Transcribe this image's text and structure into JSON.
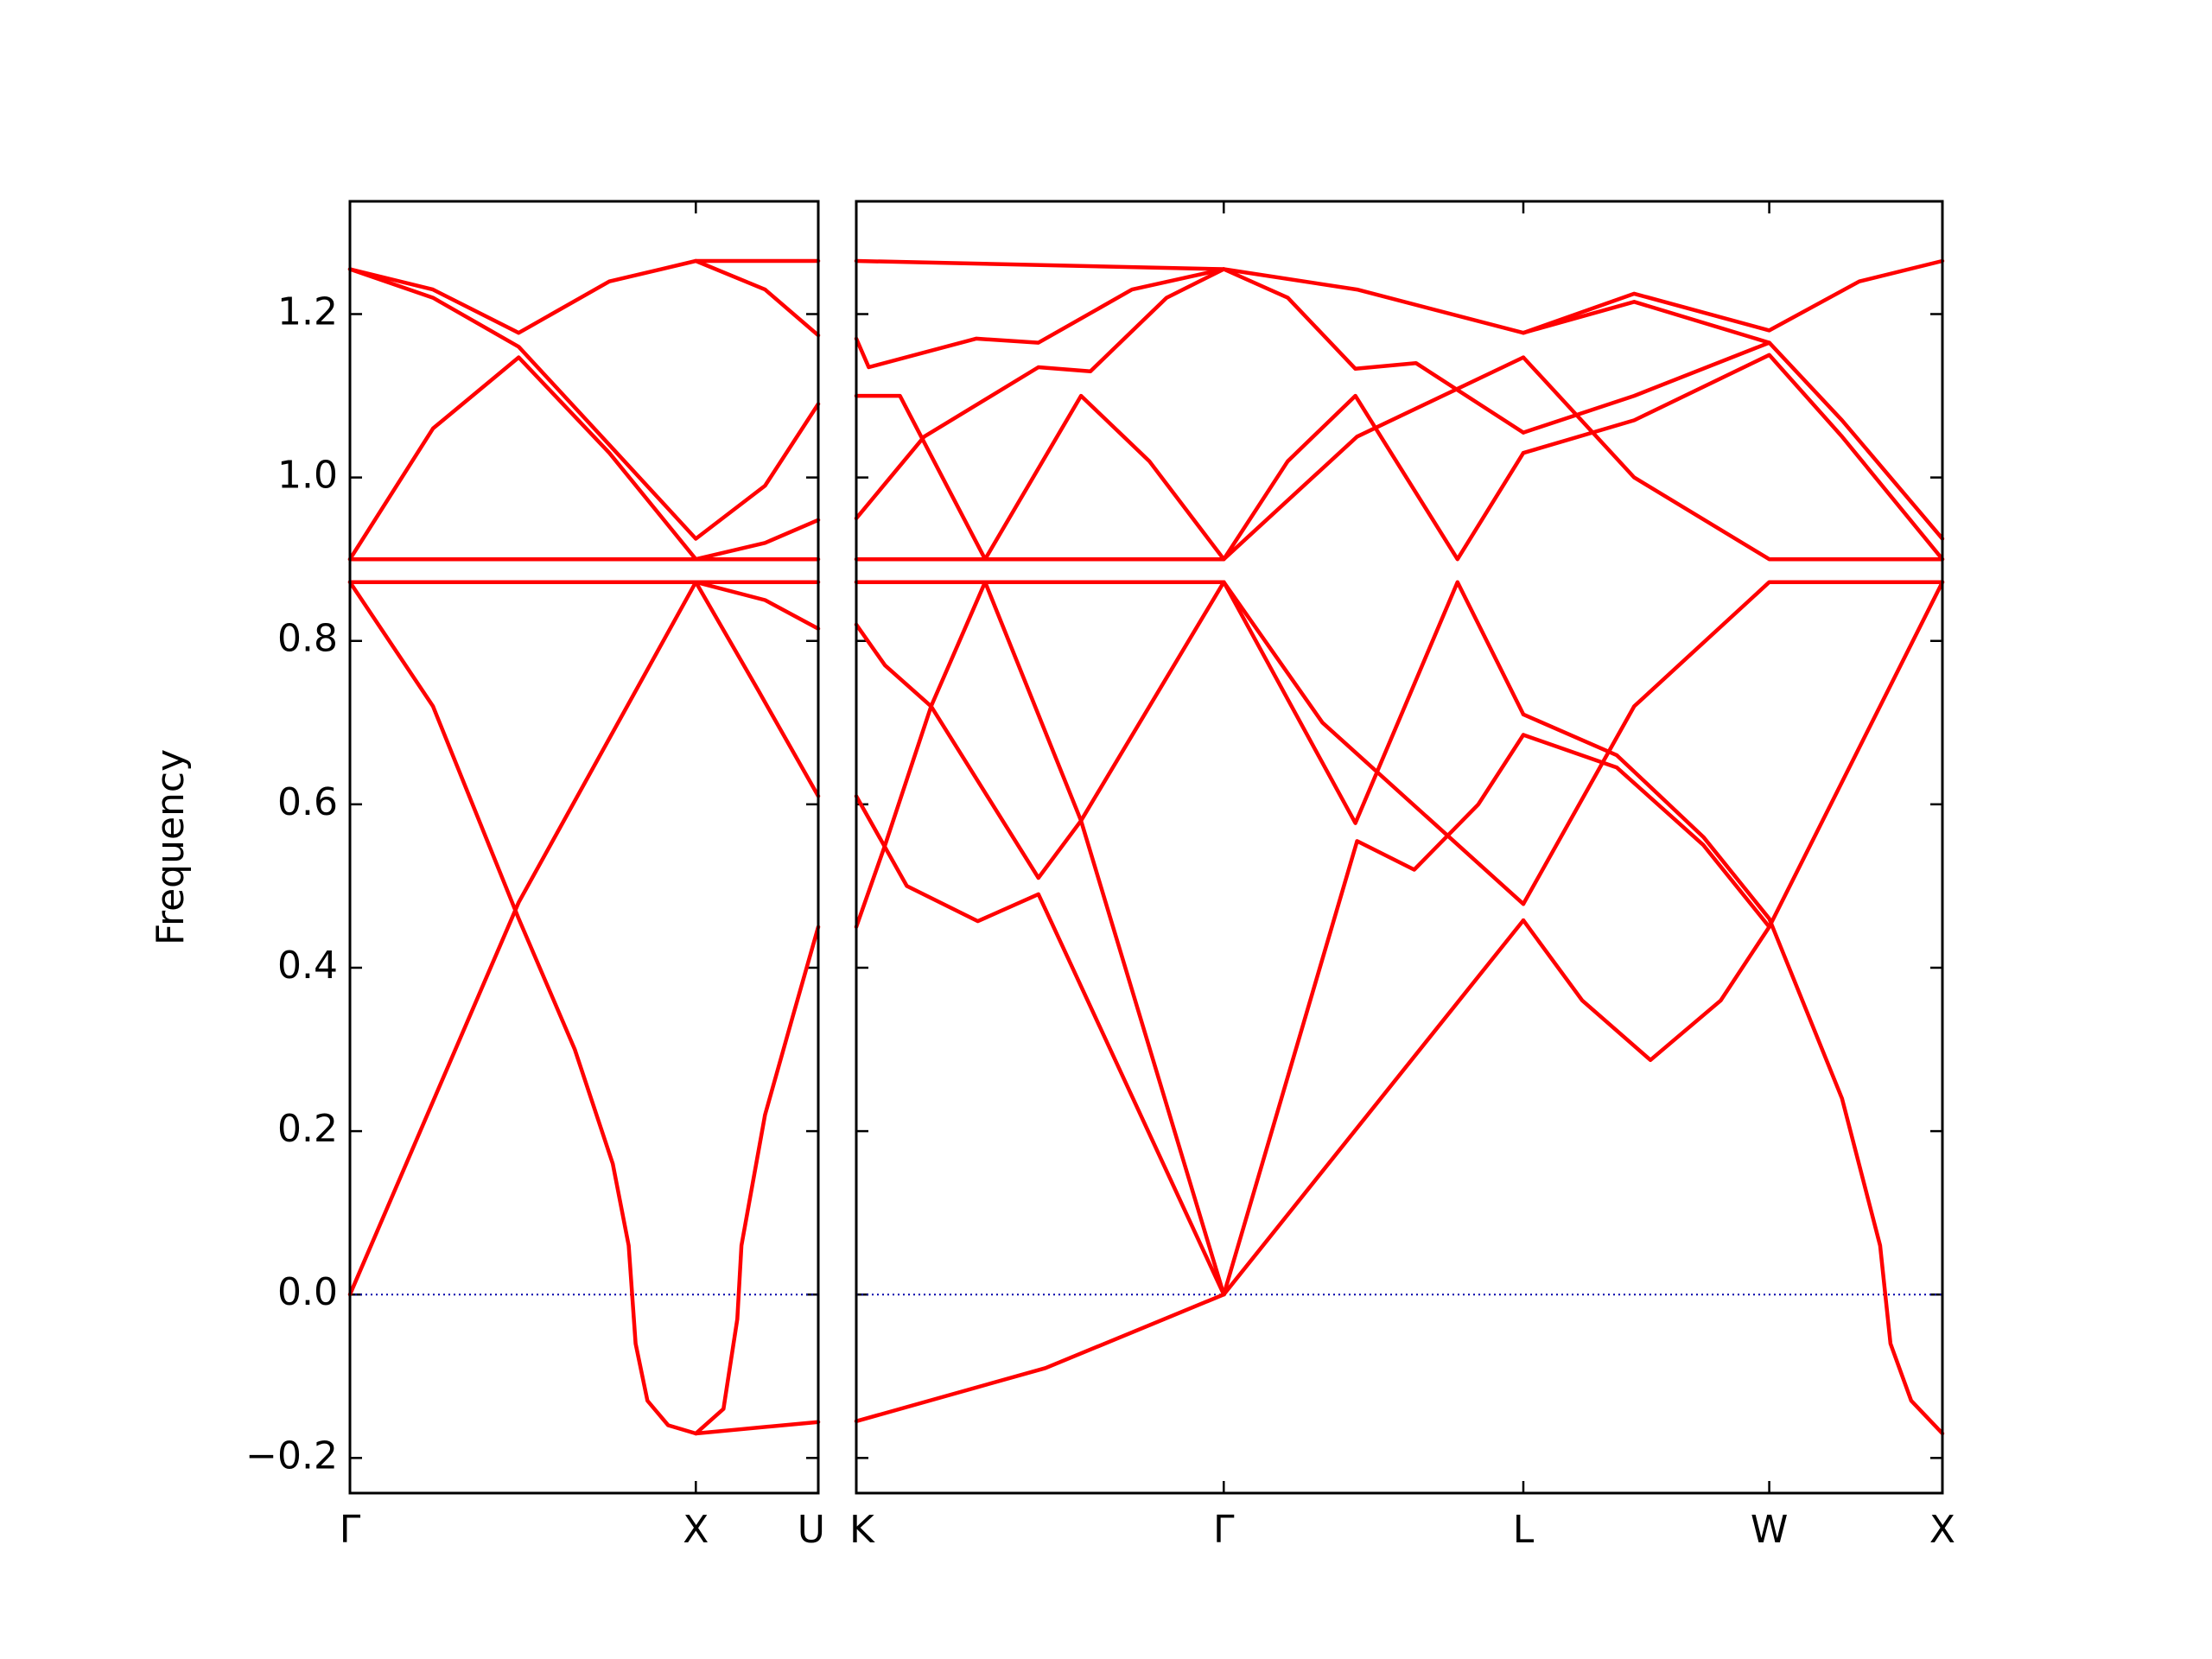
{
  "chart_data": [
    {
      "type": "line",
      "color": "#ff0000",
      "y_label": "Frequency",
      "xlim": [
        0,
        1.354
      ],
      "ylim": [
        -0.243,
        1.338
      ],
      "xticks": [
        {
          "value": 0,
          "label": "Γ"
        },
        {
          "value": 1,
          "label": "X"
        },
        {
          "value": 1.354,
          "label": "U"
        }
      ],
      "yticks": [
        {
          "value": -0.2,
          "label": "−0.2"
        },
        {
          "value": 0,
          "label": "0.0"
        },
        {
          "value": 0.2,
          "label": "0.2"
        },
        {
          "value": 0.4,
          "label": "0.4"
        },
        {
          "value": 0.6,
          "label": "0.6"
        },
        {
          "value": 0.8,
          "label": "0.8"
        },
        {
          "value": 1.0,
          "label": "1.0"
        },
        {
          "value": 1.2,
          "label": "1.2"
        }
      ],
      "hline": 0,
      "hline_color": "#0000aa",
      "series": [
        {
          "x": [
            0,
            0.488,
            1.0,
            1.18,
            1.354
          ],
          "values": [
            0,
            0.48,
            0.872,
            0.74,
            0.61
          ]
        },
        {
          "x": [
            0,
            0.24,
            0.488,
            0.65,
            0.76,
            0.806,
            0.826,
            0.86,
            0.92,
            1.0
          ],
          "values": [
            0.872,
            0.72,
            0.46,
            0.3,
            0.16,
            0.06,
            -0.06,
            -0.13,
            -0.16,
            -0.17
          ]
        },
        {
          "x": [
            1.0,
            1.08,
            1.12,
            1.132,
            1.2,
            1.28,
            1.354
          ],
          "values": [
            -0.17,
            -0.14,
            -0.03,
            0.06,
            0.22,
            0.34,
            0.45
          ]
        },
        {
          "x": [
            1.0,
            1.354
          ],
          "values": [
            -0.17,
            -0.156
          ]
        },
        {
          "x": [
            0,
            1.354
          ],
          "values": [
            0.872,
            0.872
          ]
        },
        {
          "x": [
            0,
            1.354
          ],
          "values": [
            0.9,
            0.9
          ]
        },
        {
          "x": [
            0,
            0.24,
            0.488,
            0.75,
            1.0,
            1.2,
            1.354
          ],
          "values": [
            0.9,
            1.06,
            1.147,
            1.03,
            0.9,
            0.92,
            0.948
          ]
        },
        {
          "x": [
            0,
            0.24,
            0.488,
            0.75,
            1.0,
            1.2,
            1.354
          ],
          "values": [
            1.255,
            1.22,
            1.16,
            1.04,
            0.925,
            0.99,
            1.09
          ]
        },
        {
          "x": [
            0,
            0.24,
            0.488,
            0.75,
            1.0,
            1.2,
            1.354
          ],
          "values": [
            1.255,
            1.23,
            1.177,
            1.24,
            1.265,
            1.23,
            1.174
          ]
        },
        {
          "x": [
            1.0,
            1.354
          ],
          "values": [
            1.265,
            1.265
          ]
        },
        {
          "x": [
            1.0,
            1.2,
            1.354
          ],
          "values": [
            0.872,
            0.85,
            0.815
          ]
        }
      ]
    },
    {
      "type": "line",
      "color": "#ff0000",
      "xlim": [
        1.354,
        4.49
      ],
      "ylim": [
        -0.243,
        1.338
      ],
      "xticks": [
        {
          "value": 1.354,
          "label": "K"
        },
        {
          "value": 2.415,
          "label": "Γ"
        },
        {
          "value": 3.28,
          "label": "L"
        },
        {
          "value": 3.99,
          "label": "W"
        },
        {
          "value": 4.49,
          "label": "X"
        }
      ],
      "hline": 0,
      "hline_color": "#0000aa",
      "series": [
        {
          "x": [
            1.354,
            1.9,
            2.415
          ],
          "values": [
            -0.155,
            -0.09,
            0
          ]
        },
        {
          "x": [
            1.354,
            1.5,
            1.705,
            1.88,
            2.415
          ],
          "values": [
            0.61,
            0.5,
            0.457,
            0.49,
            0
          ]
        },
        {
          "x": [
            1.354,
            1.437,
            1.57,
            1.726,
            2.003,
            2.415
          ],
          "values": [
            0.45,
            0.55,
            0.72,
            0.872,
            0.58,
            0
          ]
        },
        {
          "x": [
            1.354,
            1.437,
            1.57,
            1.88,
            2.003,
            2.415
          ],
          "values": [
            0.82,
            0.77,
            0.72,
            0.51,
            0.58,
            0.872
          ]
        },
        {
          "x": [
            1.354,
            2.415
          ],
          "values": [
            0.872,
            0.872
          ]
        },
        {
          "x": [
            1.354,
            2.415
          ],
          "values": [
            0.9,
            0.9
          ]
        },
        {
          "x": [
            1.354,
            1.48,
            1.726,
            2.003,
            2.2,
            2.415
          ],
          "values": [
            1.1,
            1.1,
            0.9,
            1.1,
            1.02,
            0.9
          ]
        },
        {
          "x": [
            1.354,
            1.55,
            1.88,
            2.03,
            2.25,
            2.415
          ],
          "values": [
            0.95,
            1.05,
            1.135,
            1.13,
            1.22,
            1.255
          ]
        },
        {
          "x": [
            1.354,
            1.39,
            1.7,
            1.88,
            2.15,
            2.415
          ],
          "values": [
            1.17,
            1.135,
            1.17,
            1.165,
            1.23,
            1.255
          ]
        },
        {
          "x": [
            1.354,
            2.415,
            2.8,
            3.28
          ],
          "values": [
            1.265,
            1.255,
            1.23,
            1.177
          ]
        },
        {
          "x": [
            2.415,
            3.28
          ],
          "values": [
            0,
            0.458
          ]
        },
        {
          "x": [
            2.415,
            2.8,
            2.965,
            3.15,
            3.28
          ],
          "values": [
            0,
            0.555,
            0.52,
            0.6,
            0.685
          ]
        },
        {
          "x": [
            2.415,
            2.795,
            3.09,
            3.28
          ],
          "values": [
            0.872,
            0.577,
            0.872,
            0.71
          ]
        },
        {
          "x": [
            2.415,
            2.7,
            3.28
          ],
          "values": [
            0.872,
            0.7,
            0.478
          ]
        },
        {
          "x": [
            2.415,
            2.6,
            2.795,
            3.09,
            3.28
          ],
          "values": [
            0.9,
            1.02,
            1.1,
            0.9,
            1.03
          ]
        },
        {
          "x": [
            2.415,
            2.8,
            3.28
          ],
          "values": [
            0.9,
            1.05,
            1.147
          ]
        },
        {
          "x": [
            2.415,
            2.6,
            2.795,
            2.97,
            3.28
          ],
          "values": [
            1.255,
            1.22,
            1.133,
            1.14,
            1.055
          ]
        },
        {
          "x": [
            3.28,
            3.45,
            3.647,
            3.85,
            3.99,
            4.49
          ],
          "values": [
            0.458,
            0.36,
            0.287,
            0.36,
            0.45,
            0.872
          ]
        },
        {
          "x": [
            3.28,
            3.6,
            3.99,
            4.49
          ],
          "values": [
            0.478,
            0.72,
            0.872,
            0.872
          ]
        },
        {
          "x": [
            3.28,
            3.55,
            3.8,
            3.99,
            4.2,
            4.31,
            4.34,
            4.4,
            4.49
          ],
          "values": [
            0.71,
            0.66,
            0.56,
            0.46,
            0.24,
            0.06,
            -0.06,
            -0.13,
            -0.17
          ]
        },
        {
          "x": [
            3.28,
            3.55,
            3.8,
            3.99
          ],
          "values": [
            0.685,
            0.645,
            0.55,
            0.45
          ]
        },
        {
          "x": [
            3.28,
            3.6,
            3.99,
            4.2,
            4.49
          ],
          "values": [
            1.03,
            1.07,
            1.15,
            1.05,
            0.9
          ]
        },
        {
          "x": [
            3.28,
            3.6,
            3.99,
            4.2,
            4.49
          ],
          "values": [
            1.055,
            1.1,
            1.165,
            1.07,
            0.925
          ]
        },
        {
          "x": [
            3.28,
            3.6,
            3.99,
            4.49
          ],
          "values": [
            1.147,
            1.0,
            0.9,
            0.9
          ]
        },
        {
          "x": [
            3.28,
            3.6,
            3.99,
            4.25,
            4.49
          ],
          "values": [
            1.177,
            1.225,
            1.18,
            1.24,
            1.265
          ]
        },
        {
          "x": [
            3.28,
            3.6,
            3.99
          ],
          "values": [
            1.177,
            1.215,
            1.165
          ]
        }
      ]
    }
  ]
}
